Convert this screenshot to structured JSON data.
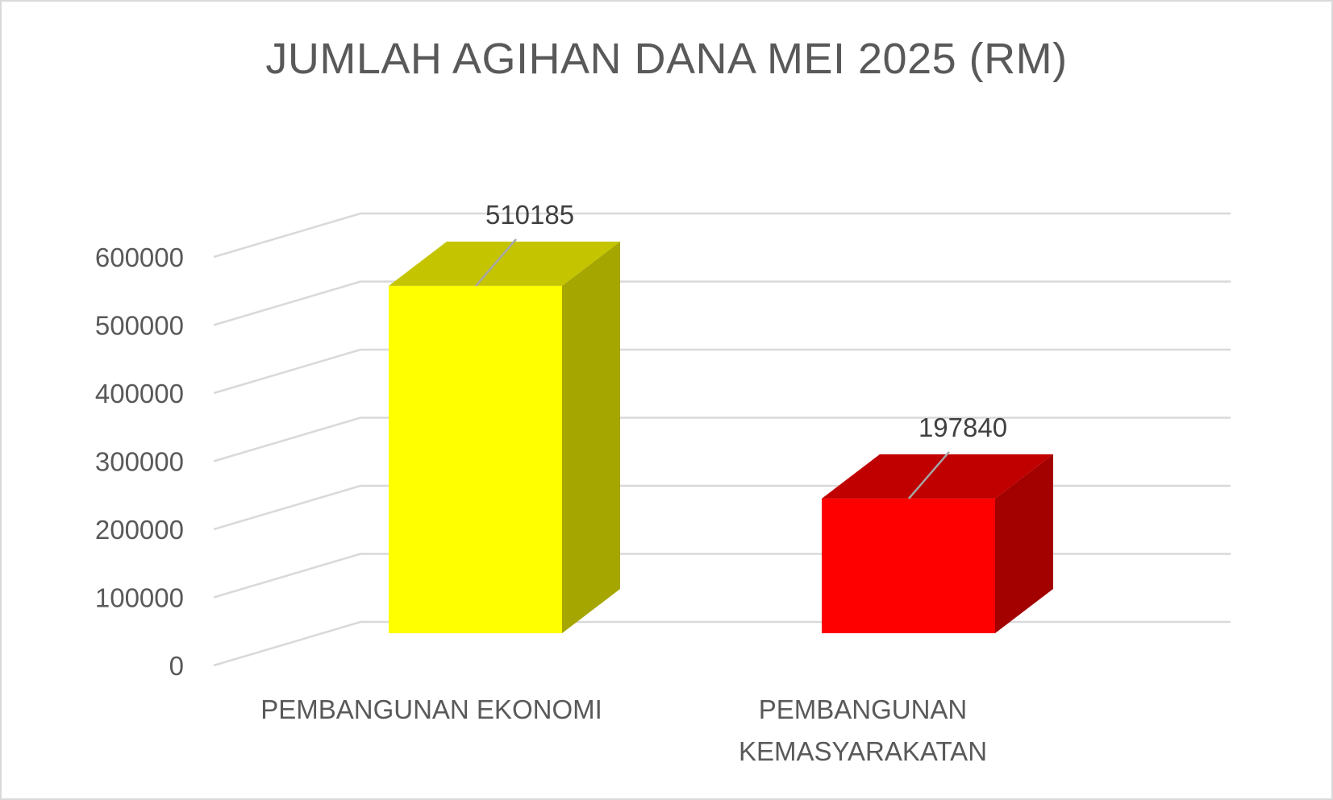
{
  "chart_data": {
    "type": "bar",
    "style": "3d-column",
    "title": "JUMLAH AGIHAN DANA MEI 2025 (RM)",
    "categories": [
      [
        "PEMBANGUNAN EKONOMI"
      ],
      [
        "PEMBANGUNAN",
        "KEMASYARAKATAN"
      ]
    ],
    "values": [
      510185,
      197840
    ],
    "data_labels": [
      "510185",
      "197840"
    ],
    "yticks": [
      "0",
      "100000",
      "200000",
      "300000",
      "400000",
      "500000",
      "600000"
    ],
    "ylim": [
      0,
      600000
    ],
    "grid": true,
    "legend": "none",
    "colors": {
      "bars": [
        {
          "front": "#ffff00",
          "top": "#c4c400",
          "side": "#a6a600"
        },
        {
          "front": "#ff0000",
          "top": "#c00000",
          "side": "#a30000"
        }
      ],
      "gridline": "#d9d9d9",
      "leader": "#a6a6a6"
    }
  }
}
